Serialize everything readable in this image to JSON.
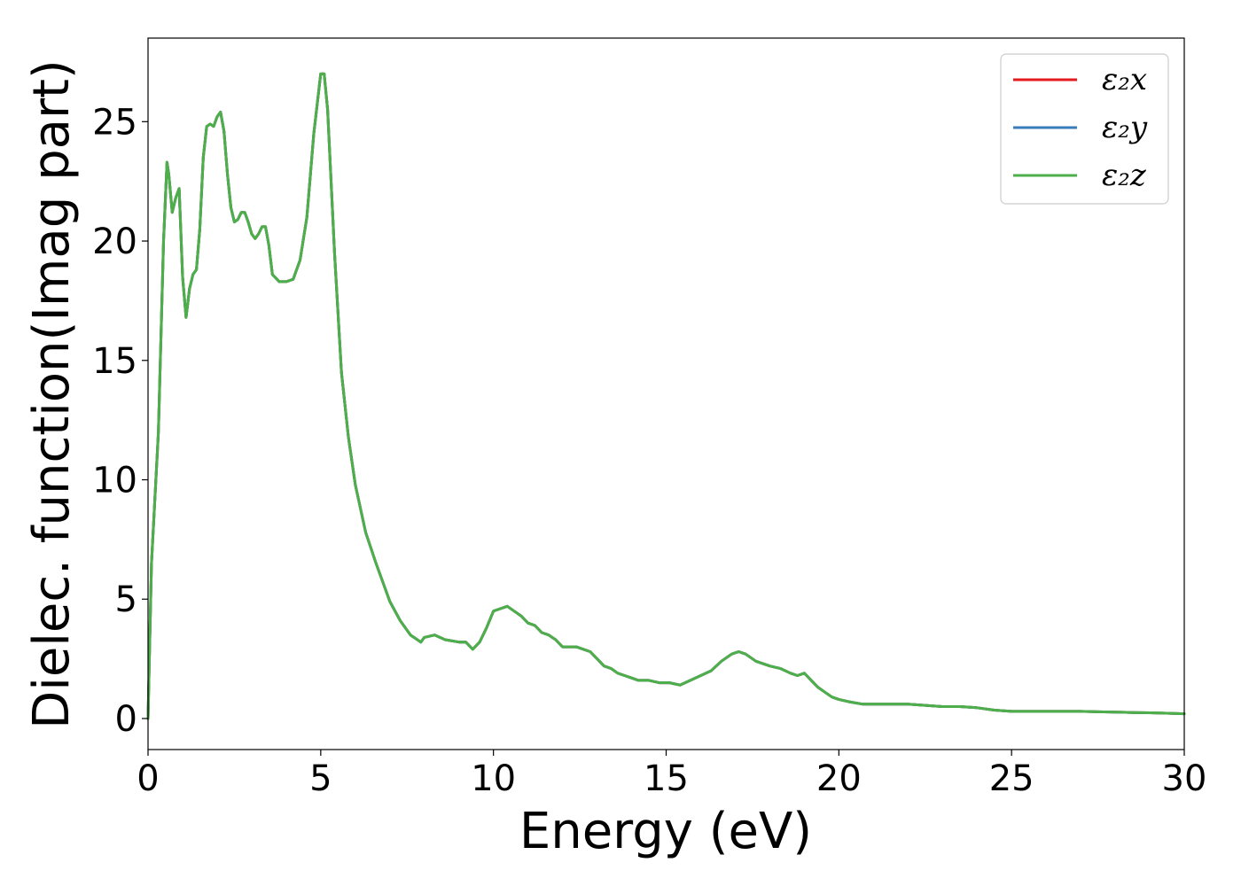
{
  "chart_data": {
    "type": "line",
    "title": "",
    "xlabel": "Energy (eV)",
    "ylabel": "Dielec. function(Imag part)",
    "xlim": [
      0,
      30
    ],
    "ylim": [
      -1.3,
      28.5
    ],
    "xticks": [
      0,
      5,
      10,
      15,
      20,
      25,
      30
    ],
    "xtick_labels": [
      "0",
      "5",
      "10",
      "15",
      "20",
      "25",
      "30"
    ],
    "yticks": [
      0,
      5,
      10,
      15,
      20,
      25
    ],
    "ytick_labels": [
      "0",
      "5",
      "10",
      "15",
      "20",
      "25"
    ],
    "grid": false,
    "legend_position": "top-right",
    "x": [
      0,
      0.1,
      0.3,
      0.45,
      0.55,
      0.6,
      0.7,
      0.8,
      0.9,
      1.0,
      1.1,
      1.2,
      1.3,
      1.4,
      1.5,
      1.6,
      1.7,
      1.8,
      1.9,
      2.0,
      2.1,
      2.2,
      2.3,
      2.4,
      2.5,
      2.6,
      2.7,
      2.8,
      2.9,
      3.0,
      3.1,
      3.2,
      3.3,
      3.4,
      3.5,
      3.6,
      3.8,
      4.0,
      4.2,
      4.4,
      4.6,
      4.8,
      5.0,
      5.1,
      5.2,
      5.4,
      5.6,
      5.8,
      6.0,
      6.3,
      6.6,
      7.0,
      7.3,
      7.6,
      7.9,
      8.0,
      8.3,
      8.6,
      9.0,
      9.2,
      9.4,
      9.6,
      9.8,
      10.0,
      10.2,
      10.4,
      10.6,
      10.8,
      11.0,
      11.2,
      11.4,
      11.6,
      11.8,
      12.0,
      12.2,
      12.4,
      12.6,
      12.8,
      13.0,
      13.2,
      13.4,
      13.6,
      13.8,
      14.0,
      14.2,
      14.5,
      14.8,
      15.1,
      15.4,
      15.7,
      16.0,
      16.3,
      16.6,
      16.9,
      17.1,
      17.3,
      17.6,
      18.0,
      18.3,
      18.6,
      18.8,
      19.0,
      19.2,
      19.4,
      19.6,
      19.8,
      20.0,
      20.3,
      20.7,
      21.0,
      21.5,
      22.0,
      22.5,
      23.0,
      23.5,
      24.0,
      24.5,
      25.0,
      25.5,
      26.0,
      26.5,
      27.0,
      27.5,
      28.0,
      28.5,
      29.0,
      29.5,
      30.0
    ],
    "series": [
      {
        "name": "ε₂x",
        "color": "#e41a1c",
        "values": [
          0.0,
          6.5,
          12.0,
          20.0,
          23.3,
          22.8,
          21.2,
          21.8,
          22.2,
          18.5,
          16.8,
          18.0,
          18.6,
          18.8,
          20.5,
          23.5,
          24.8,
          24.9,
          24.8,
          25.2,
          25.4,
          24.6,
          22.8,
          21.4,
          20.8,
          20.9,
          21.2,
          21.2,
          20.8,
          20.3,
          20.1,
          20.3,
          20.6,
          20.6,
          19.8,
          18.6,
          18.3,
          18.3,
          18.4,
          19.2,
          21.0,
          24.5,
          27.0,
          27.0,
          25.5,
          19.5,
          14.5,
          11.8,
          9.8,
          7.8,
          6.5,
          4.9,
          4.1,
          3.5,
          3.2,
          3.4,
          3.5,
          3.3,
          3.2,
          3.2,
          2.9,
          3.2,
          3.8,
          4.5,
          4.6,
          4.7,
          4.5,
          4.3,
          4.0,
          3.9,
          3.6,
          3.5,
          3.3,
          3.0,
          3.0,
          3.0,
          2.9,
          2.8,
          2.5,
          2.2,
          2.1,
          1.9,
          1.8,
          1.7,
          1.6,
          1.6,
          1.5,
          1.5,
          1.4,
          1.6,
          1.8,
          2.0,
          2.4,
          2.7,
          2.8,
          2.7,
          2.4,
          2.2,
          2.1,
          1.9,
          1.8,
          1.9,
          1.6,
          1.3,
          1.1,
          0.9,
          0.8,
          0.7,
          0.6,
          0.6,
          0.6,
          0.6,
          0.55,
          0.5,
          0.5,
          0.45,
          0.35,
          0.3,
          0.3,
          0.3,
          0.3,
          0.3,
          0.28,
          0.27,
          0.25,
          0.24,
          0.22,
          0.2
        ]
      },
      {
        "name": "ε₂y",
        "color": "#377eb8",
        "values": [
          0.0,
          6.5,
          12.0,
          20.0,
          23.3,
          22.8,
          21.2,
          21.8,
          22.2,
          18.5,
          16.8,
          18.0,
          18.6,
          18.8,
          20.5,
          23.5,
          24.8,
          24.9,
          24.8,
          25.2,
          25.4,
          24.6,
          22.8,
          21.4,
          20.8,
          20.9,
          21.2,
          21.2,
          20.8,
          20.3,
          20.1,
          20.3,
          20.6,
          20.6,
          19.8,
          18.6,
          18.3,
          18.3,
          18.4,
          19.2,
          21.0,
          24.5,
          27.0,
          27.0,
          25.5,
          19.5,
          14.5,
          11.8,
          9.8,
          7.8,
          6.5,
          4.9,
          4.1,
          3.5,
          3.2,
          3.4,
          3.5,
          3.3,
          3.2,
          3.2,
          2.9,
          3.2,
          3.8,
          4.5,
          4.6,
          4.7,
          4.5,
          4.3,
          4.0,
          3.9,
          3.6,
          3.5,
          3.3,
          3.0,
          3.0,
          3.0,
          2.9,
          2.8,
          2.5,
          2.2,
          2.1,
          1.9,
          1.8,
          1.7,
          1.6,
          1.6,
          1.5,
          1.5,
          1.4,
          1.6,
          1.8,
          2.0,
          2.4,
          2.7,
          2.8,
          2.7,
          2.4,
          2.2,
          2.1,
          1.9,
          1.8,
          1.9,
          1.6,
          1.3,
          1.1,
          0.9,
          0.8,
          0.7,
          0.6,
          0.6,
          0.6,
          0.6,
          0.55,
          0.5,
          0.5,
          0.45,
          0.35,
          0.3,
          0.3,
          0.3,
          0.3,
          0.3,
          0.28,
          0.27,
          0.25,
          0.24,
          0.22,
          0.2
        ]
      },
      {
        "name": "ε₂z",
        "color": "#4daf4a",
        "values": [
          0.0,
          6.5,
          12.0,
          20.0,
          23.3,
          22.8,
          21.2,
          21.8,
          22.2,
          18.5,
          16.8,
          18.0,
          18.6,
          18.8,
          20.5,
          23.5,
          24.8,
          24.9,
          24.8,
          25.2,
          25.4,
          24.6,
          22.8,
          21.4,
          20.8,
          20.9,
          21.2,
          21.2,
          20.8,
          20.3,
          20.1,
          20.3,
          20.6,
          20.6,
          19.8,
          18.6,
          18.3,
          18.3,
          18.4,
          19.2,
          21.0,
          24.5,
          27.0,
          27.0,
          25.5,
          19.5,
          14.5,
          11.8,
          9.8,
          7.8,
          6.5,
          4.9,
          4.1,
          3.5,
          3.2,
          3.4,
          3.5,
          3.3,
          3.2,
          3.2,
          2.9,
          3.2,
          3.8,
          4.5,
          4.6,
          4.7,
          4.5,
          4.3,
          4.0,
          3.9,
          3.6,
          3.5,
          3.3,
          3.0,
          3.0,
          3.0,
          2.9,
          2.8,
          2.5,
          2.2,
          2.1,
          1.9,
          1.8,
          1.7,
          1.6,
          1.6,
          1.5,
          1.5,
          1.4,
          1.6,
          1.8,
          2.0,
          2.4,
          2.7,
          2.8,
          2.7,
          2.4,
          2.2,
          2.1,
          1.9,
          1.8,
          1.9,
          1.6,
          1.3,
          1.1,
          0.9,
          0.8,
          0.7,
          0.6,
          0.6,
          0.6,
          0.6,
          0.55,
          0.5,
          0.5,
          0.45,
          0.35,
          0.3,
          0.3,
          0.3,
          0.3,
          0.3,
          0.28,
          0.27,
          0.25,
          0.24,
          0.22,
          0.2
        ]
      }
    ]
  }
}
